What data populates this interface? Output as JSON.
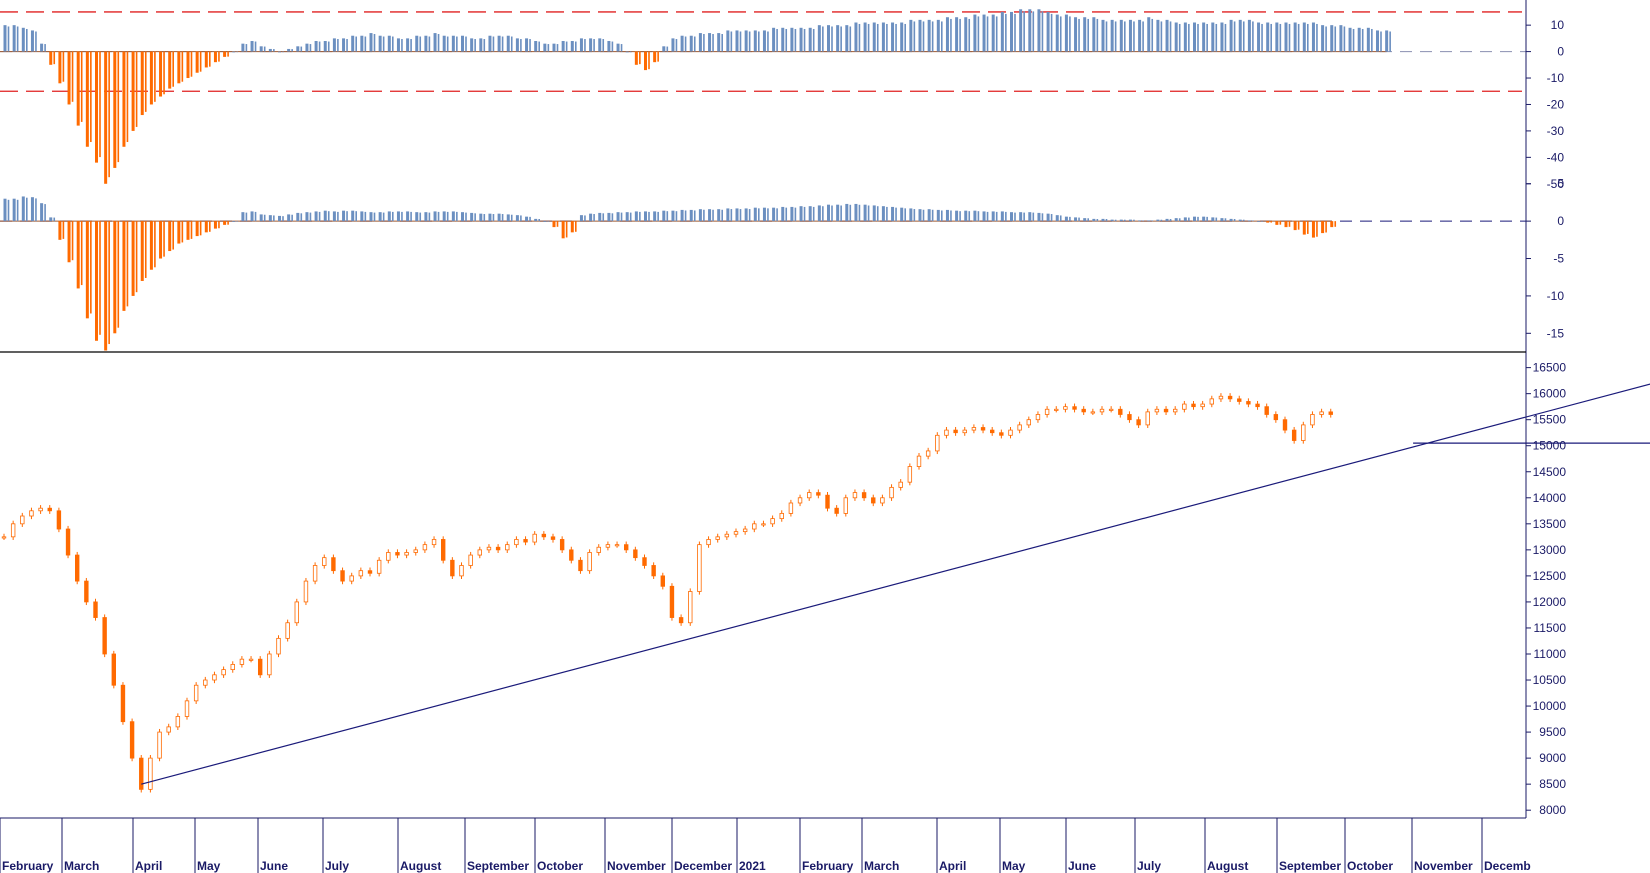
{
  "chart_data": [
    {
      "type": "bar",
      "panel": "oscillator-1",
      "ylim": [
        -55,
        18
      ],
      "yticks": [
        10,
        0,
        -10,
        -20,
        -30,
        -40,
        -50
      ],
      "reference_lines": [
        15,
        0,
        -15
      ],
      "series": [
        {
          "values": [
            10,
            10,
            9,
            8,
            3,
            -5,
            -12,
            -20,
            -28,
            -36,
            -42,
            -50,
            -44,
            -36,
            -30,
            -24,
            -20,
            -17,
            -14,
            -12,
            -10,
            -8,
            -6,
            -4,
            -2,
            0,
            3,
            4,
            2,
            1,
            0,
            1,
            2,
            3,
            4,
            4,
            5,
            5,
            6,
            6,
            7,
            6,
            6,
            5,
            5,
            6,
            6,
            7,
            6,
            6,
            6,
            5,
            5,
            6,
            6,
            6,
            5,
            5,
            4,
            3,
            3,
            4,
            4,
            5,
            5,
            5,
            4,
            3,
            0,
            -5,
            -7,
            -4,
            2,
            5,
            6,
            6,
            7,
            7,
            7,
            8,
            8,
            8,
            8,
            8,
            9,
            9,
            9,
            9,
            9,
            10,
            10,
            10,
            10,
            11,
            11,
            11,
            11,
            11,
            11,
            12,
            12,
            12,
            12,
            13,
            13,
            13,
            14,
            14,
            14,
            15,
            15,
            16,
            16,
            16,
            15,
            14,
            14,
            13,
            13,
            13,
            12,
            12,
            12,
            12,
            12,
            13,
            12,
            12,
            11,
            11,
            11,
            11,
            11,
            11,
            12,
            12,
            12,
            11,
            11,
            11,
            11,
            11,
            11,
            11,
            10,
            10,
            10,
            9,
            9,
            9,
            8,
            8
          ]
        }
      ]
    },
    {
      "type": "bar",
      "panel": "oscillator-2",
      "ylim": [
        -17.5,
        5.5
      ],
      "yticks": [
        5,
        0,
        -5,
        -10,
        -15
      ],
      "reference_lines": [
        0
      ],
      "series": [
        {
          "values": [
            3,
            3,
            3.3,
            3.2,
            2.4,
            0.5,
            -2.5,
            -5.5,
            -9,
            -13,
            -16,
            -17.3,
            -15,
            -12,
            -10,
            -8,
            -6.5,
            -5,
            -4,
            -3,
            -2.5,
            -2,
            -1.5,
            -1,
            -0.5,
            0,
            1.2,
            1.3,
            0.9,
            0.8,
            0.7,
            0.9,
            1.1,
            1.2,
            1.3,
            1.4,
            1.3,
            1.4,
            1.4,
            1.3,
            1.2,
            1.2,
            1.3,
            1.3,
            1.3,
            1.2,
            1.2,
            1.3,
            1.3,
            1.3,
            1.2,
            1.1,
            1,
            1,
            1,
            0.9,
            0.8,
            0.6,
            0.3,
            0,
            -0.8,
            -2.3,
            -1.5,
            0.8,
            1,
            1.1,
            1.1,
            1.2,
            1.2,
            1.3,
            1.3,
            1.3,
            1.4,
            1.4,
            1.5,
            1.5,
            1.6,
            1.6,
            1.6,
            1.7,
            1.7,
            1.7,
            1.8,
            1.8,
            1.8,
            1.9,
            1.9,
            2,
            2,
            2.1,
            2.2,
            2.2,
            2.3,
            2.3,
            2.2,
            2.1,
            2,
            1.9,
            1.8,
            1.7,
            1.6,
            1.6,
            1.5,
            1.5,
            1.4,
            1.4,
            1.4,
            1.3,
            1.3,
            1.3,
            1.2,
            1.2,
            1.2,
            1.1,
            1,
            0.8,
            0.6,
            0.5,
            0.4,
            0.3,
            0.3,
            0.2,
            0.2,
            0.2,
            0.1,
            0.1,
            0.2,
            0.3,
            0.4,
            0.5,
            0.6,
            0.6,
            0.5,
            0.4,
            0.3,
            0.2,
            0.1,
            0,
            -0.2,
            -0.5,
            -0.8,
            -1.2,
            -1.8,
            -2.2,
            -1.6,
            -0.8
          ]
        }
      ]
    },
    {
      "type": "line",
      "panel": "price",
      "ylim": [
        7850,
        16800
      ],
      "yticks": [
        16500,
        16000,
        15500,
        15000,
        14500,
        14000,
        13500,
        13000,
        12500,
        12000,
        11500,
        11000,
        10500,
        10000,
        9500,
        9000,
        8500,
        8000
      ],
      "x_axis_labels": [
        "February",
        "March",
        "April",
        "May",
        "June",
        "July",
        "August",
        "September",
        "October",
        "November",
        "December",
        "2021",
        "February",
        "March",
        "April",
        "May",
        "June",
        "July",
        "August",
        "September",
        "October",
        "November",
        "Decemb"
      ],
      "series": [
        {
          "values": [
            13250,
            13500,
            13650,
            13750,
            13800,
            13750,
            13400,
            12900,
            12400,
            12000,
            11700,
            11000,
            10400,
            9700,
            9000,
            8400,
            9000,
            9500,
            9600,
            9800,
            10100,
            10400,
            10500,
            10600,
            10700,
            10800,
            10900,
            10900,
            10600,
            11000,
            11300,
            11600,
            12000,
            12400,
            12700,
            12850,
            12600,
            12400,
            12500,
            12600,
            12550,
            12800,
            12950,
            12900,
            12950,
            13000,
            13100,
            13200,
            12800,
            12500,
            12700,
            12900,
            13000,
            13050,
            13000,
            13100,
            13200,
            13150,
            13300,
            13250,
            13200,
            13000,
            12800,
            12600,
            12950,
            13050,
            13100,
            13100,
            13000,
            12850,
            12700,
            12500,
            12300,
            11700,
            11600,
            12200,
            13100,
            13200,
            13250,
            13300,
            13350,
            13400,
            13500,
            13500,
            13600,
            13700,
            13900,
            14000,
            14100,
            14050,
            13800,
            13700,
            14000,
            14100,
            14000,
            13900,
            14000,
            14200,
            14300,
            14600,
            14800,
            14900,
            15200,
            15300,
            15250,
            15300,
            15350,
            15300,
            15250,
            15200,
            15300,
            15400,
            15500,
            15600,
            15700,
            15700,
            15750,
            15700,
            15650,
            15650,
            15700,
            15700,
            15600,
            15500,
            15400,
            15650,
            15700,
            15650,
            15700,
            15800,
            15750,
            15800,
            15900,
            15950,
            15900,
            15850,
            15800,
            15750,
            15600,
            15500,
            15300,
            15100,
            15400,
            15600,
            15650,
            15600
          ]
        }
      ],
      "trendlines": [
        {
          "x": [
            15,
            191
          ],
          "y": [
            8500,
            16700
          ]
        },
        {
          "x": [
            154,
            205
          ],
          "y": [
            15050,
            15050
          ]
        }
      ]
    }
  ],
  "colors": {
    "positive": "#6b8fc0",
    "negative": "#ff6a00",
    "reference": "#e02020",
    "trendline": "#1a1a7a",
    "axis": "#1a1a66"
  }
}
